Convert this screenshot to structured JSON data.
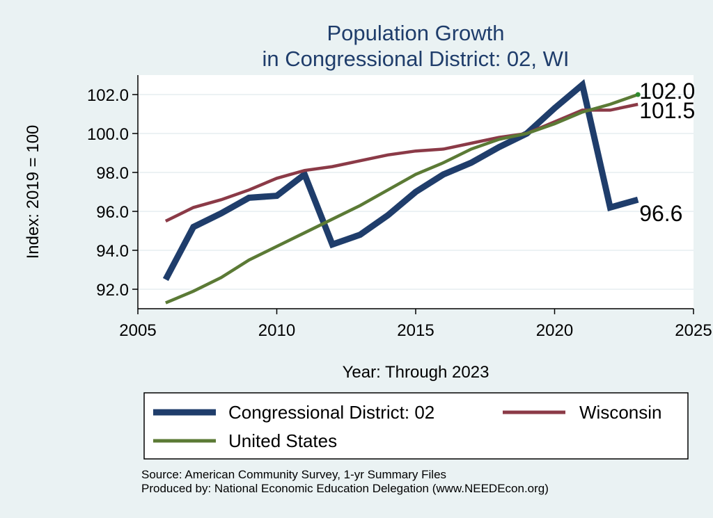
{
  "chart_data": {
    "type": "line",
    "title": "Population Growth",
    "subtitle": "in Congressional District: 02, WI",
    "xlabel": "Year: Through 2023",
    "ylabel": "Index: 2019 = 100",
    "xlim": [
      2005,
      2025
    ],
    "ylim": [
      91.0,
      103.0
    ],
    "x_ticks": [
      2005,
      2010,
      2015,
      2020,
      2025
    ],
    "y_ticks": [
      92.0,
      94.0,
      96.0,
      98.0,
      100.0,
      102.0
    ],
    "y_tick_labels": [
      "92.0",
      "94.0",
      "96.0",
      "98.0",
      "100.0",
      "102.0"
    ],
    "grid": true,
    "legend_position": "bottom",
    "x": [
      2006,
      2007,
      2008,
      2009,
      2010,
      2011,
      2012,
      2013,
      2014,
      2015,
      2016,
      2017,
      2018,
      2019,
      2020,
      2021,
      2022,
      2023
    ],
    "series": [
      {
        "name": "Congressional District: 02",
        "color": "#1f3d6b",
        "values": [
          92.5,
          95.2,
          95.9,
          96.7,
          96.8,
          97.9,
          94.3,
          94.8,
          95.8,
          97.0,
          97.9,
          98.5,
          99.3,
          100.0,
          101.3,
          102.5,
          96.2,
          96.6
        ],
        "end_label": "96.6"
      },
      {
        "name": "Wisconsin",
        "color": "#8b3a47",
        "values": [
          95.5,
          96.2,
          96.6,
          97.1,
          97.7,
          98.1,
          98.3,
          98.6,
          98.9,
          99.1,
          99.2,
          99.5,
          99.8,
          100.0,
          100.6,
          101.2,
          101.2,
          101.5
        ],
        "end_label": "101.5"
      },
      {
        "name": "United States",
        "color": "#5b7a35",
        "values": [
          91.3,
          91.9,
          92.6,
          93.5,
          94.2,
          94.9,
          95.6,
          96.3,
          97.1,
          97.9,
          98.5,
          99.2,
          99.7,
          100.0,
          100.5,
          101.1,
          101.5,
          102.0
        ],
        "end_label": "102.0"
      }
    ],
    "source_note": "Source: American Community Survey, 1-yr Summary Files",
    "producer_note": "Produced by: National Economic Education Delegation (www.NEEDEcon.org)"
  }
}
